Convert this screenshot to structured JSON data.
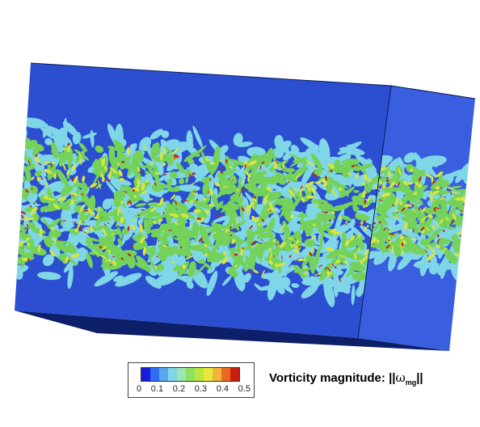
{
  "legend": {
    "colors": [
      "#1a1adc",
      "#2f6cf0",
      "#5aa6f0",
      "#7fd6e6",
      "#9ce6b4",
      "#8fe060",
      "#b8e83c",
      "#e8e838",
      "#f0b43c",
      "#e86a20",
      "#c81e10"
    ],
    "ticks": [
      "0",
      "0.1",
      "0.2",
      "0.3",
      "0.4",
      "0.5"
    ]
  },
  "caption": {
    "label": "Vorticity magnitude: ||",
    "symbol": "ω",
    "subscript": "mg",
    "suffix": "||"
  },
  "scene_colors": {
    "front_face": "#2c4fd2",
    "side_face": "#3a5ee0",
    "bottom_face": "#0e1f6a",
    "band_green": "#74d25a",
    "band_cyan": "#7fd6e6",
    "band_yellow": "#d8e440",
    "band_red": "#c81e10"
  }
}
